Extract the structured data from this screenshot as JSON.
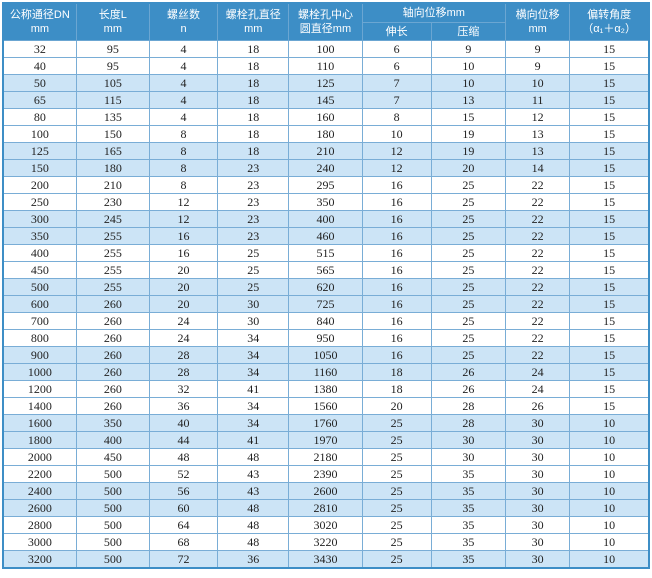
{
  "colors": {
    "header_bg": "#3d8ec6",
    "alt_row_bg": "#cce4f6",
    "border": "#79add6",
    "header_text": "#ffffff",
    "data_text": "#222222"
  },
  "table": {
    "header": {
      "col1": {
        "l1": "公称通径DN",
        "l2": "mm"
      },
      "col2": {
        "l1": "长度L",
        "l2": "mm"
      },
      "col3": {
        "l1": "螺丝数",
        "l2": "n"
      },
      "col4": {
        "l1": "螺栓孔直径",
        "l2": "mm"
      },
      "col5": {
        "l1": "螺栓孔中心",
        "l2": "圆直径mm"
      },
      "col6": {
        "l1": "轴向位移mm",
        "sub1": "伸长",
        "sub2": "压缩"
      },
      "col7": {
        "l1": "横向位移",
        "l2": "mm"
      },
      "col8": {
        "l1": "偏转角度",
        "l2": "（α₁＋α₂）"
      }
    },
    "rows": [
      [
        32,
        95,
        4,
        18,
        100,
        6,
        9,
        9,
        15
      ],
      [
        40,
        95,
        4,
        18,
        110,
        6,
        10,
        9,
        15
      ],
      [
        50,
        105,
        4,
        18,
        125,
        7,
        10,
        10,
        15
      ],
      [
        65,
        115,
        4,
        18,
        145,
        7,
        13,
        11,
        15
      ],
      [
        80,
        135,
        4,
        18,
        160,
        8,
        15,
        12,
        15
      ],
      [
        100,
        150,
        8,
        18,
        180,
        10,
        19,
        13,
        15
      ],
      [
        125,
        165,
        8,
        18,
        210,
        12,
        19,
        13,
        15
      ],
      [
        150,
        180,
        8,
        23,
        240,
        12,
        20,
        14,
        15
      ],
      [
        200,
        210,
        8,
        23,
        295,
        16,
        25,
        22,
        15
      ],
      [
        250,
        230,
        12,
        23,
        350,
        16,
        25,
        22,
        15
      ],
      [
        300,
        245,
        12,
        23,
        400,
        16,
        25,
        22,
        15
      ],
      [
        350,
        255,
        16,
        23,
        460,
        16,
        25,
        22,
        15
      ],
      [
        400,
        255,
        16,
        25,
        515,
        16,
        25,
        22,
        15
      ],
      [
        450,
        255,
        20,
        25,
        565,
        16,
        25,
        22,
        15
      ],
      [
        500,
        255,
        20,
        25,
        620,
        16,
        25,
        22,
        15
      ],
      [
        600,
        260,
        20,
        30,
        725,
        16,
        25,
        22,
        15
      ],
      [
        700,
        260,
        24,
        30,
        840,
        16,
        25,
        22,
        15
      ],
      [
        800,
        260,
        24,
        34,
        950,
        16,
        25,
        22,
        15
      ],
      [
        900,
        260,
        28,
        34,
        1050,
        16,
        25,
        22,
        15
      ],
      [
        1000,
        260,
        28,
        34,
        1160,
        18,
        26,
        24,
        15
      ],
      [
        1200,
        260,
        32,
        41,
        1380,
        18,
        26,
        24,
        15
      ],
      [
        1400,
        260,
        36,
        34,
        1560,
        20,
        28,
        26,
        15
      ],
      [
        1600,
        350,
        40,
        34,
        1760,
        25,
        28,
        30,
        10
      ],
      [
        1800,
        400,
        44,
        41,
        1970,
        25,
        30,
        30,
        10
      ],
      [
        2000,
        450,
        48,
        48,
        2180,
        25,
        30,
        30,
        10
      ],
      [
        2200,
        500,
        52,
        43,
        2390,
        25,
        35,
        30,
        10
      ],
      [
        2400,
        500,
        56,
        43,
        2600,
        25,
        35,
        30,
        10
      ],
      [
        2600,
        500,
        60,
        48,
        2810,
        25,
        35,
        30,
        10
      ],
      [
        2800,
        500,
        64,
        48,
        3020,
        25,
        35,
        30,
        10
      ],
      [
        3000,
        500,
        68,
        48,
        3220,
        25,
        35,
        30,
        10
      ],
      [
        3200,
        500,
        72,
        36,
        3430,
        25,
        35,
        30,
        10
      ]
    ]
  }
}
